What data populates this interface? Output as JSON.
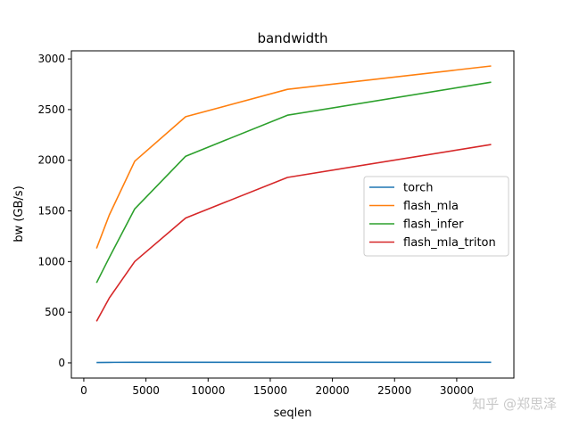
{
  "watermark": "知乎 @郑思泽",
  "chart_data": {
    "type": "line",
    "title": "bandwidth",
    "xlabel": "seqlen",
    "ylabel": "bw (GB/s)",
    "xlim": [
      -1000,
      34600
    ],
    "ylim": [
      -150,
      3080
    ],
    "xticks": [
      0,
      5000,
      10000,
      15000,
      20000,
      25000,
      30000
    ],
    "yticks": [
      0,
      500,
      1000,
      1500,
      2000,
      2500,
      3000
    ],
    "grid": false,
    "legend_position": "center-right",
    "x": [
      1024,
      2048,
      4096,
      8192,
      16384,
      32768
    ],
    "series": [
      {
        "name": "torch",
        "color": "#1f77b4",
        "values": [
          3,
          5,
          6,
          6,
          6,
          6
        ]
      },
      {
        "name": "flash_mla",
        "color": "#ff7f0e",
        "values": [
          1130,
          1460,
          1990,
          2430,
          2700,
          2930
        ]
      },
      {
        "name": "flash_infer",
        "color": "#2ca02c",
        "values": [
          790,
          1040,
          1520,
          2040,
          2445,
          2770
        ]
      },
      {
        "name": "flash_mla_triton",
        "color": "#d62728",
        "values": [
          410,
          640,
          1000,
          1430,
          1830,
          2155
        ]
      }
    ]
  }
}
